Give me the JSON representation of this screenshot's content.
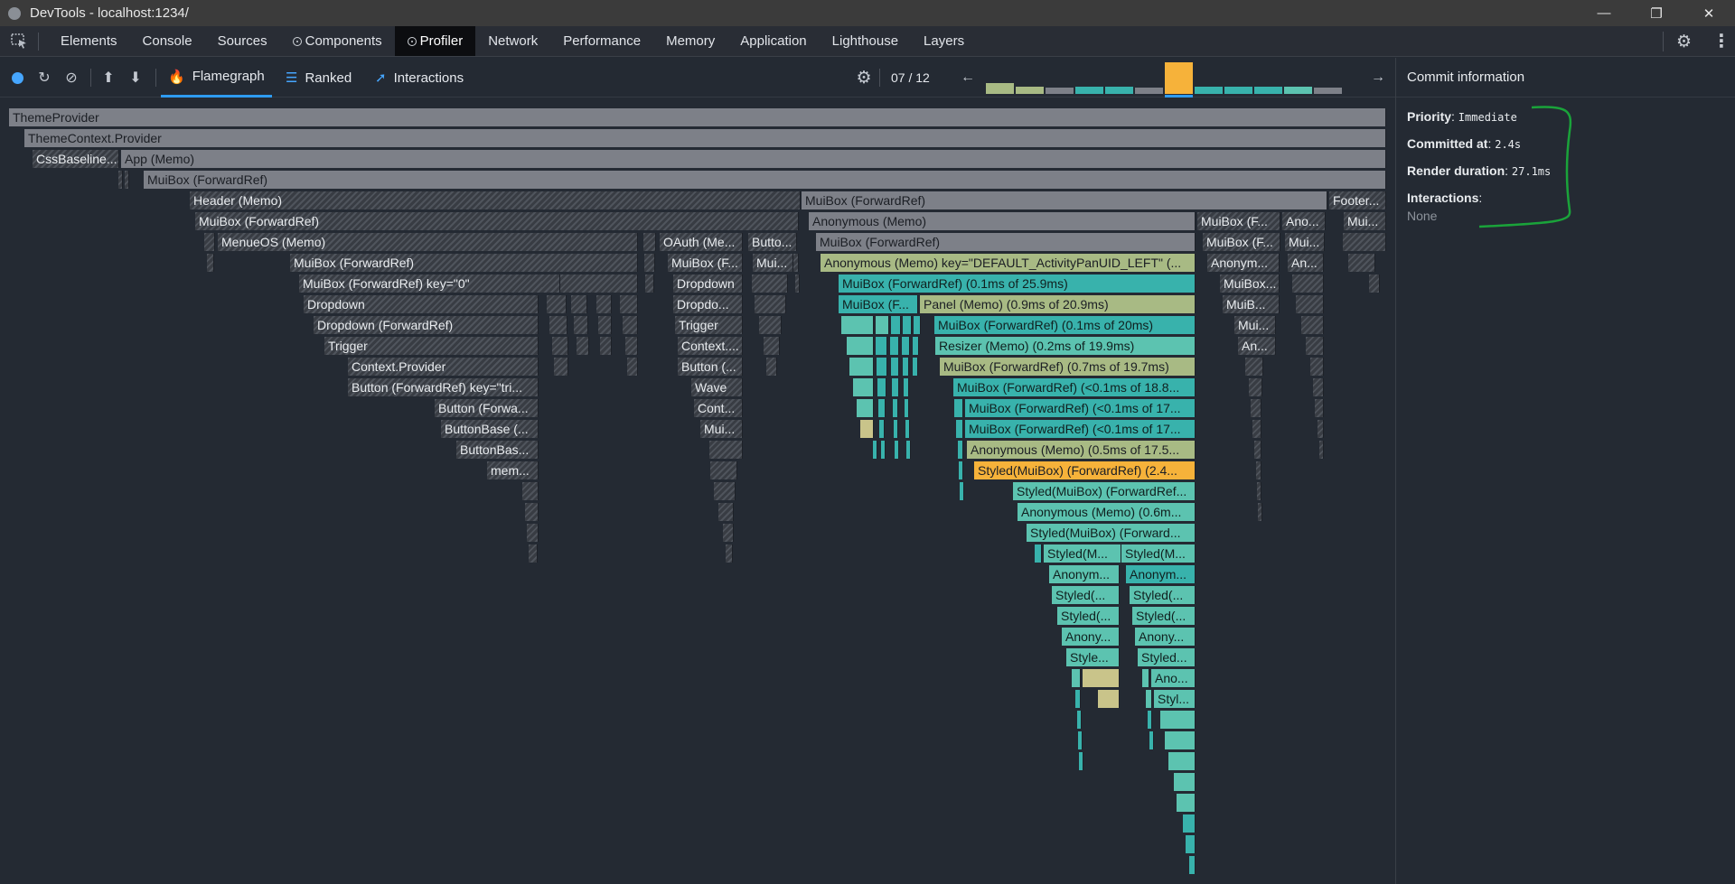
{
  "window": {
    "title": "DevTools - localhost:1234/"
  },
  "tabs": [
    "Elements",
    "Console",
    "Sources",
    "Components",
    "Profiler",
    "Network",
    "Performance",
    "Memory",
    "Application",
    "Lighthouse",
    "Layers"
  ],
  "profiler": {
    "tabs": [
      "Flamegraph",
      "Ranked",
      "Interactions"
    ],
    "commit_nav": "07 / 12",
    "active_tab": "Flamegraph"
  },
  "commit_info": {
    "heading": "Commit information",
    "priority_label": "Priority",
    "priority_value": "Immediate",
    "committed_label": "Committed at",
    "committed_value": "2.4s",
    "render_label": "Render duration",
    "render_value": "27.1ms",
    "interactions_label": "Interactions",
    "interactions_value": "None"
  },
  "flame": {
    "l1": "ThemeProvider",
    "l2": "ThemeContext.Provider",
    "l3a": "CssBaseline...",
    "l3b": "App (Memo)",
    "l4": "MuiBox (ForwardRef)",
    "l5a": "Header (Memo)",
    "l5b": "MuiBox (ForwardRef)",
    "l5c": "Footer...",
    "l6a": "MuiBox (ForwardRef)",
    "l6b": "Anonymous (Memo)",
    "l6c": "MuiBox (F...",
    "l6d": "Ano...",
    "l6e": "Mui...",
    "l7a": "MenueOS (Memo)",
    "l7b": "OAuth (Me...",
    "l7c": "Butto...",
    "l7d": "MuiBox (ForwardRef)",
    "l7e": "MuiBox (F...",
    "l7f": "Mui...",
    "l8a": "MuiBox (ForwardRef)",
    "l8b": "MuiBox (F...",
    "l8c": "Mui...",
    "l8d": "Anonymous (Memo) key=\"DEFAULT_ActivityPanUID_LEFT\" (...",
    "l8e": "Anonym...",
    "l8f": "An...",
    "l9a": "MuiBox (ForwardRef) key=\"0\"",
    "l9b": "Dropdown",
    "l9c": "MuiBox (ForwardRef) (0.1ms of 25.9ms)",
    "l9d": "MuiBox...",
    "l10a": "Dropdown",
    "l10b": "Dropdo...",
    "l10c": "MuiBox (F...",
    "l10d": "Panel (Memo) (0.9ms of 20.9ms)",
    "l10e": "MuiB...",
    "l11a": "Dropdown (ForwardRef)",
    "l11b": "Trigger",
    "l11c": "MuiBox (ForwardRef) (0.1ms of 20ms)",
    "l11d": "Mui...",
    "l12a": "Trigger",
    "l12b": "Context....",
    "l12c": "Resizer (Memo) (0.2ms of 19.9ms)",
    "l12d": "An...",
    "l13a": "Context.Provider",
    "l13b": "Button (...",
    "l13c": "MuiBox (ForwardRef) (0.7ms of 19.7ms)",
    "l14a": "Button (ForwardRef) key=\"tri...",
    "l14b": "Wave",
    "l14c": "MuiBox (ForwardRef) (<0.1ms of 18.8...",
    "l15a": "Button (Forwa...",
    "l15b": "Cont...",
    "l15c": "MuiBox (ForwardRef) (<0.1ms of 17...",
    "l16a": "ButtonBase (...",
    "l16b": "Mui...",
    "l16c": "MuiBox (ForwardRef) (<0.1ms of 17...",
    "l17a": "ButtonBas...",
    "l17b": "Anonymous (Memo) (0.5ms of 17.5...",
    "l18a": "mem...",
    "l18b": "Styled(MuiBox) (ForwardRef) (2.4...",
    "l19": "Styled(MuiBox) (ForwardRef...",
    "l20": "Anonymous (Memo) (0.6m...",
    "l21": "Styled(MuiBox) (Forward...",
    "l22a": "Styled(M...",
    "l22b": "Styled(M...",
    "l23a": "Anonym...",
    "l23b": "Anonym...",
    "l24a": "Styled(...",
    "l24b": "Styled(...",
    "l25a": "Styled(...",
    "l25b": "Styled(...",
    "l26a": "Anony...",
    "l26b": "Anony...",
    "l27a": "Style...",
    "l27b": "Styled...",
    "l28": "Ano...",
    "l29": "Styl..."
  },
  "colors": {
    "accent": "#2e9bf0",
    "selected_commit": "#f6b23a",
    "annotation": "#1aa33a"
  },
  "icons": [
    "record-icon",
    "reload-icon",
    "clear-icon",
    "load-icon",
    "save-icon",
    "flame-icon",
    "ranked-icon",
    "interactions-icon",
    "settings-icon",
    "prev-arrow-icon",
    "next-arrow-icon",
    "gear-icon",
    "kebab-icon"
  ]
}
